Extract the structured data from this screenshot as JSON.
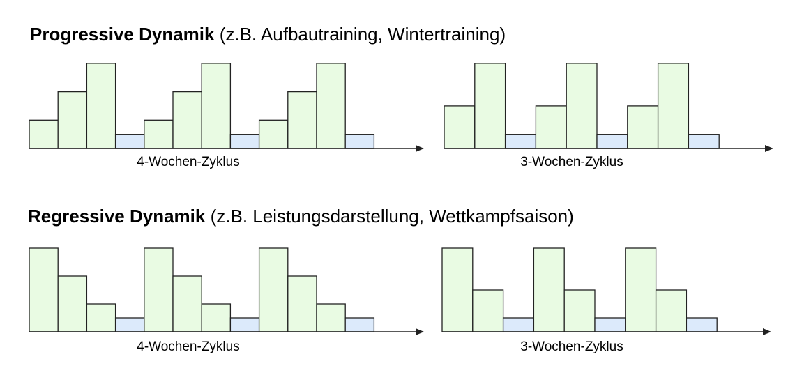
{
  "sections": [
    {
      "title_bold": "Progressive Dynamik",
      "title_rest": " (z.B. Aufbautraining, Wintertraining)",
      "charts": [
        {
          "label": "4-Wochen-Zyklus",
          "weeks": [
            1,
            2,
            3,
            0.5,
            1,
            2,
            3,
            0.5,
            1,
            2,
            3,
            0.5
          ],
          "recovery": [
            false,
            false,
            false,
            true,
            false,
            false,
            false,
            true,
            false,
            false,
            false,
            true
          ]
        },
        {
          "label": "3-Wochen-Zyklus",
          "weeks": [
            1.5,
            3,
            0.5,
            1.5,
            3,
            0.5,
            1.5,
            3,
            0.5
          ],
          "recovery": [
            false,
            false,
            true,
            false,
            false,
            true,
            false,
            false,
            true
          ]
        }
      ]
    },
    {
      "title_bold": "Regressive Dynamik",
      "title_rest": " (z.B. Leistungsdarstellung, Wettkampfsaison)",
      "charts": [
        {
          "label": "4-Wochen-Zyklus",
          "weeks": [
            3,
            2,
            1,
            0.5,
            3,
            2,
            1,
            0.5,
            3,
            2,
            1,
            0.5
          ],
          "recovery": [
            false,
            false,
            false,
            true,
            false,
            false,
            false,
            true,
            false,
            false,
            false,
            true
          ]
        },
        {
          "label": "3-Wochen-Zyklus",
          "weeks": [
            3,
            1.5,
            0.5,
            3,
            1.5,
            0.5,
            3,
            1.5,
            0.5
          ],
          "recovery": [
            false,
            false,
            true,
            false,
            false,
            true,
            false,
            false,
            true
          ]
        }
      ]
    }
  ],
  "colors": {
    "load": "#e9fbe3",
    "recovery": "#dceafb",
    "stroke": "#222222"
  }
}
